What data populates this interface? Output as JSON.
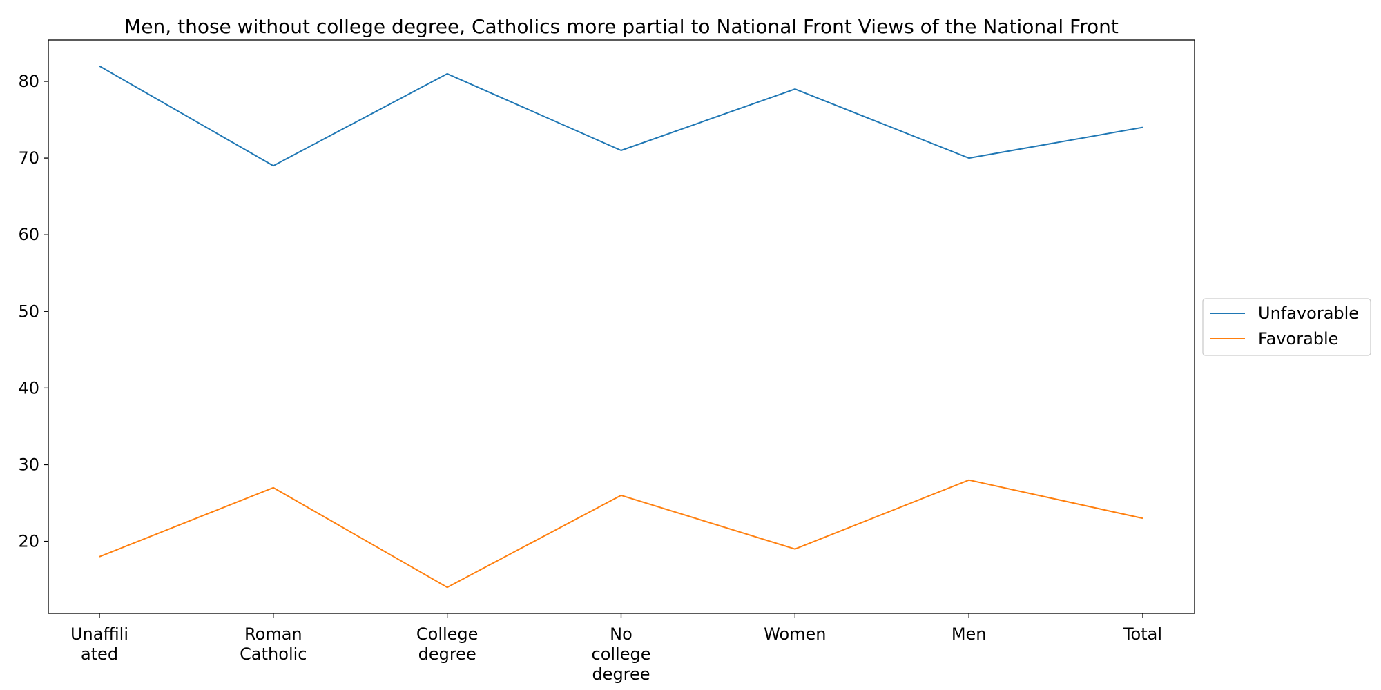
{
  "chart_data": {
    "type": "line",
    "title": "Men, those without college degree, Catholics more partial to National Front Views of the National Front",
    "xlabel": "",
    "ylabel": "",
    "categories": [
      [
        "Unaffili",
        "ated"
      ],
      [
        "Roman",
        "Catholic"
      ],
      [
        "College",
        "degree"
      ],
      [
        "No",
        "college",
        "degree"
      ],
      [
        "Women"
      ],
      [
        "Men"
      ],
      [
        "Total"
      ]
    ],
    "series": [
      {
        "name": "Unfavorable",
        "color": "#1f77b4",
        "values": [
          82,
          69,
          81,
          71,
          79,
          70,
          74
        ]
      },
      {
        "name": "Favorable",
        "color": "#ff7f0e",
        "values": [
          18,
          27,
          14,
          26,
          19,
          28,
          23
        ]
      }
    ],
    "ylim": [
      10.6,
      85.4
    ],
    "yticks": [
      20,
      30,
      40,
      50,
      60,
      70,
      80
    ],
    "grid": false,
    "legend": "center-right"
  }
}
